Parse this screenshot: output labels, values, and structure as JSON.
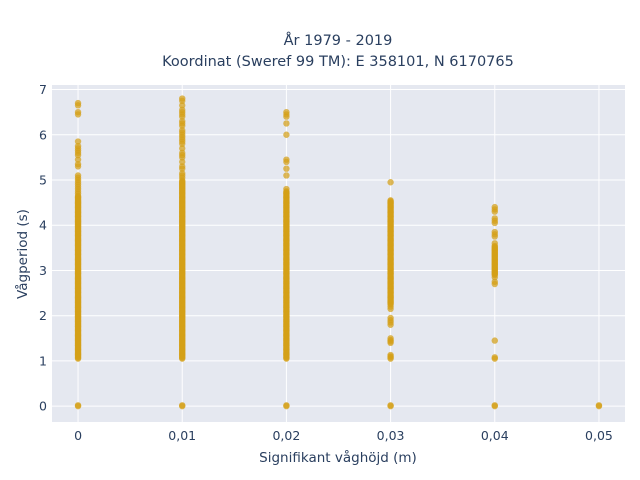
{
  "chart_data": {
    "type": "scatter",
    "title": "År 1979 - 2019",
    "subtitle": "Koordinat (Sweref 99 TM): E 358101, N 6170765",
    "xlabel": "Signifikant våghöjd (m)",
    "ylabel": "Vågperiod (s)",
    "xlim": [
      -0.0025,
      0.0525
    ],
    "ylim": [
      -0.35,
      7.1
    ],
    "x_ticks": [
      0,
      0.01,
      0.02,
      0.03,
      0.04,
      0.05
    ],
    "x_tick_labels": [
      "0",
      "0,01",
      "0,02",
      "0,03",
      "0,04",
      "0,05"
    ],
    "y_ticks": [
      0,
      1,
      2,
      3,
      4,
      5,
      6,
      7
    ],
    "y_tick_labels": [
      "0",
      "1",
      "2",
      "3",
      "4",
      "5",
      "6",
      "7"
    ],
    "grid": true,
    "legend": "none",
    "marker_color": "#d4a017",
    "plot_background": "#e5e8f0",
    "columns": [
      {
        "x": 0,
        "bands": [
          [
            1.05,
            4.65
          ]
        ],
        "points": [
          0.0,
          0.02,
          4.7,
          4.75,
          4.8,
          4.85,
          4.9,
          4.95,
          5.0,
          5.05,
          5.1,
          5.3,
          5.35,
          5.45,
          5.55,
          5.6,
          5.65,
          5.7,
          5.75,
          5.85,
          6.45,
          6.5,
          6.65,
          6.7
        ]
      },
      {
        "x": 0.01,
        "bands": [
          [
            1.05,
            5.0
          ]
        ],
        "points": [
          0.0,
          0.02,
          5.05,
          5.1,
          5.15,
          5.25,
          5.3,
          5.4,
          5.5,
          5.55,
          5.6,
          5.7,
          5.8,
          5.85,
          5.9,
          5.95,
          6.0,
          6.05,
          6.1,
          6.2,
          6.25,
          6.3,
          6.4,
          6.45,
          6.5,
          6.55,
          6.65,
          6.75,
          6.8
        ]
      },
      {
        "x": 0.02,
        "bands": [
          [
            1.05,
            4.75
          ]
        ],
        "points": [
          0.0,
          0.02,
          4.8,
          5.1,
          5.25,
          5.4,
          5.45,
          6.0,
          6.25,
          6.4,
          6.45,
          6.5
        ]
      },
      {
        "x": 0.03,
        "bands": [
          [
            2.25,
            4.55
          ]
        ],
        "points": [
          0.0,
          0.02,
          1.05,
          1.08,
          1.1,
          1.13,
          1.4,
          1.43,
          1.46,
          1.5,
          1.8,
          1.85,
          1.9,
          1.95,
          2.15,
          2.2,
          4.95
        ]
      },
      {
        "x": 0.04,
        "bands": [
          [
            2.9,
            3.55
          ]
        ],
        "points": [
          0.0,
          0.02,
          1.05,
          1.08,
          1.45,
          2.7,
          2.75,
          2.85,
          3.6,
          3.75,
          3.8,
          3.85,
          4.05,
          4.1,
          4.15,
          4.3,
          4.35,
          4.4
        ]
      },
      {
        "x": 0.05,
        "bands": [],
        "points": [
          0.0,
          0.02
        ]
      }
    ]
  }
}
